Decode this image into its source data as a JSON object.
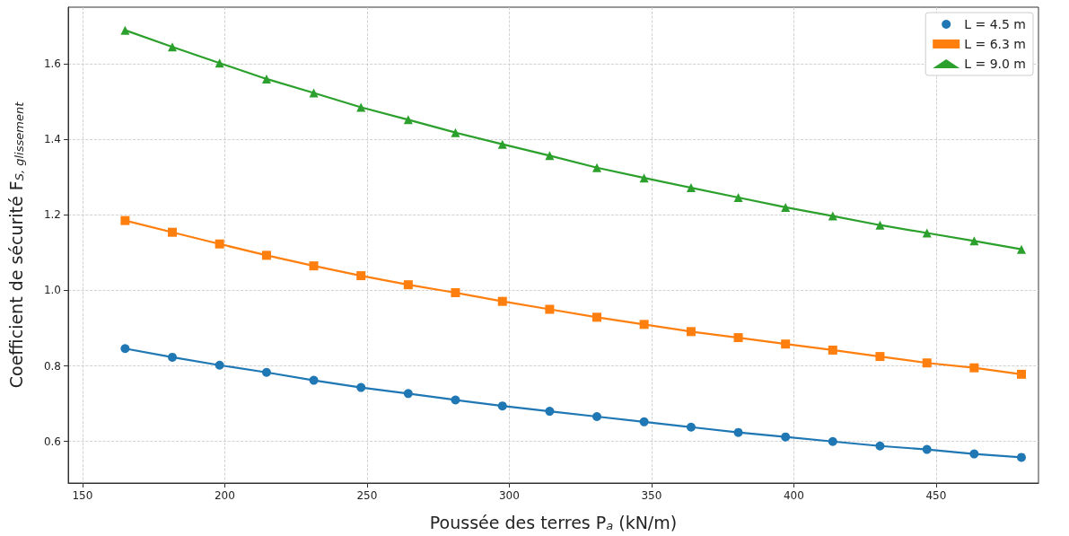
{
  "chart_data": {
    "type": "line",
    "xlabel": "Poussée des terres P$_{a}$ (kN/m)",
    "ylabel": "Coefficient de sécurité F$_{S, glissement}$",
    "x": [
      165,
      181.6,
      198.2,
      214.7,
      231.3,
      247.9,
      264.5,
      281.1,
      297.6,
      314.2,
      330.8,
      347.4,
      363.9,
      380.5,
      397.1,
      413.7,
      430.3,
      446.8,
      463.4,
      480
    ],
    "series": [
      {
        "name": "L = 4.5 m",
        "color": "#1f77b4",
        "marker": "circle",
        "values": [
          0.846,
          0.823,
          0.802,
          0.783,
          0.762,
          0.743,
          0.727,
          0.71,
          0.694,
          0.68,
          0.666,
          0.652,
          0.638,
          0.624,
          0.612,
          0.6,
          0.588,
          0.579,
          0.567,
          0.558
        ]
      },
      {
        "name": "L = 6.3 m",
        "color": "#ff7f0e",
        "marker": "square",
        "values": [
          1.185,
          1.154,
          1.123,
          1.093,
          1.065,
          1.039,
          1.015,
          0.994,
          0.971,
          0.95,
          0.929,
          0.91,
          0.891,
          0.875,
          0.858,
          0.842,
          0.825,
          0.808,
          0.795,
          0.778
        ]
      },
      {
        "name": "L = 9.0 m",
        "color": "#2ca02c",
        "marker": "triangle",
        "values": [
          1.689,
          1.645,
          1.602,
          1.56,
          1.523,
          1.485,
          1.452,
          1.418,
          1.387,
          1.357,
          1.325,
          1.298,
          1.272,
          1.246,
          1.22,
          1.197,
          1.173,
          1.152,
          1.131,
          1.109
        ]
      }
    ],
    "xlim": [
      145,
      486
    ],
    "ylim": [
      0.49,
      1.75
    ],
    "xticks": [
      150,
      200,
      250,
      300,
      350,
      400,
      450
    ],
    "yticks": [
      0.6,
      0.8,
      {
        "value": 1,
        "label": "1.0"
      },
      1.2,
      1.4,
      1.6
    ],
    "grid": true,
    "legend": "top right",
    "line_style": "solid"
  }
}
